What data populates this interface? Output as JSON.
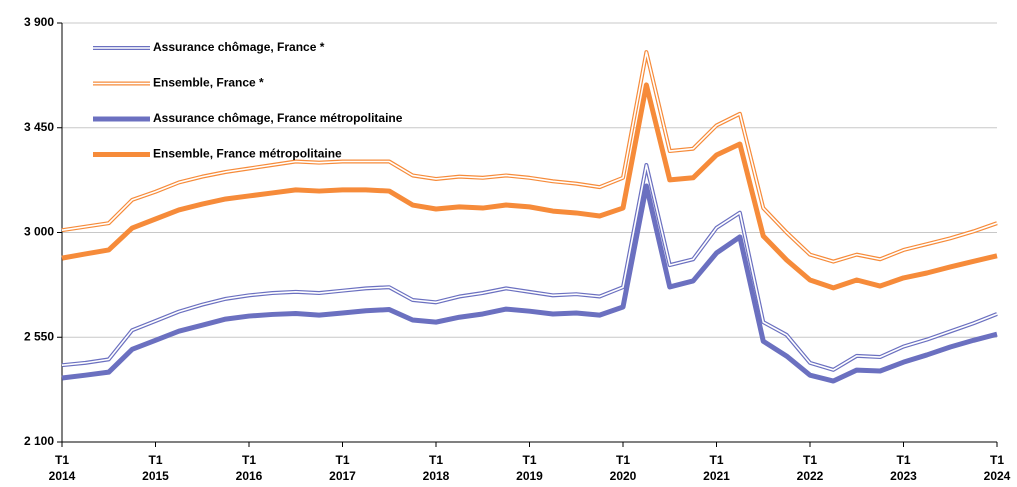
{
  "chart_data": {
    "type": "line",
    "categories": [
      "T1\n2014",
      null,
      null,
      null,
      "T1\n2015",
      null,
      null,
      null,
      "T1\n2016",
      null,
      null,
      null,
      "T1\n2017",
      null,
      null,
      null,
      "T1\n2018",
      null,
      null,
      null,
      "T1\n2019",
      null,
      null,
      null,
      "T1\n2020",
      null,
      null,
      null,
      "T1\n2021",
      null,
      null,
      null,
      "T1\n2022",
      null,
      null,
      null,
      "T1\n2023",
      null,
      null,
      null,
      "T1\n2024"
    ],
    "series": [
      {
        "name": "Assurance chômage, France *",
        "color": "#6b70c0",
        "line_style": "double",
        "values": [
          2430,
          2440,
          2455,
          2580,
          2620,
          2660,
          2690,
          2715,
          2730,
          2740,
          2745,
          2740,
          2750,
          2760,
          2765,
          2710,
          2700,
          2725,
          2740,
          2760,
          2745,
          2730,
          2735,
          2725,
          2765,
          3290,
          2860,
          2885,
          3020,
          3085,
          2615,
          2560,
          2440,
          2410,
          2470,
          2465,
          2510,
          2540,
          2575,
          2610,
          2650
        ]
      },
      {
        "name": "Ensemble, France *",
        "color": "#f68b3a",
        "line_style": "double",
        "values": [
          3010,
          3025,
          3040,
          3140,
          3175,
          3215,
          3240,
          3260,
          3275,
          3290,
          3305,
          3300,
          3305,
          3305,
          3305,
          3245,
          3230,
          3240,
          3235,
          3245,
          3235,
          3220,
          3210,
          3195,
          3235,
          3775,
          3350,
          3360,
          3460,
          3510,
          3105,
          3000,
          2905,
          2875,
          2905,
          2885,
          2925,
          2950,
          2975,
          3005,
          3040
        ]
      },
      {
        "name": "Assurance chômage, France métropolitaine",
        "color": "#6b70c0",
        "line_style": "solid",
        "values": [
          2375,
          2387,
          2400,
          2498,
          2537,
          2576,
          2602,
          2628,
          2641,
          2648,
          2652,
          2645,
          2654,
          2664,
          2669,
          2624,
          2615,
          2636,
          2650,
          2671,
          2662,
          2650,
          2654,
          2645,
          2680,
          3200,
          2766,
          2792,
          2912,
          2981,
          2533,
          2469,
          2387,
          2362,
          2409,
          2405,
          2443,
          2474,
          2508,
          2537,
          2563
        ]
      },
      {
        "name": "Ensemble, France métropolitaine",
        "color": "#f68b3a",
        "line_style": "solid",
        "values": [
          2890,
          2908,
          2925,
          3019,
          3058,
          3097,
          3122,
          3144,
          3157,
          3170,
          3183,
          3178,
          3183,
          3183,
          3178,
          3118,
          3101,
          3110,
          3105,
          3118,
          3110,
          3092,
          3084,
          3071,
          3105,
          3634,
          3226,
          3235,
          3333,
          3380,
          2985,
          2882,
          2796,
          2762,
          2796,
          2770,
          2805,
          2826,
          2852,
          2876,
          2900
        ]
      }
    ],
    "ylim": [
      2100,
      3900
    ],
    "yticks": [
      {
        "value": 2100,
        "label": "2 100"
      },
      {
        "value": 2550,
        "label": "2 550"
      },
      {
        "value": 3000,
        "label": "3 000"
      },
      {
        "value": 3450,
        "label": "3 450"
      },
      {
        "value": 3900,
        "label": "3 900"
      }
    ],
    "grid": true,
    "legend": "upper left"
  }
}
